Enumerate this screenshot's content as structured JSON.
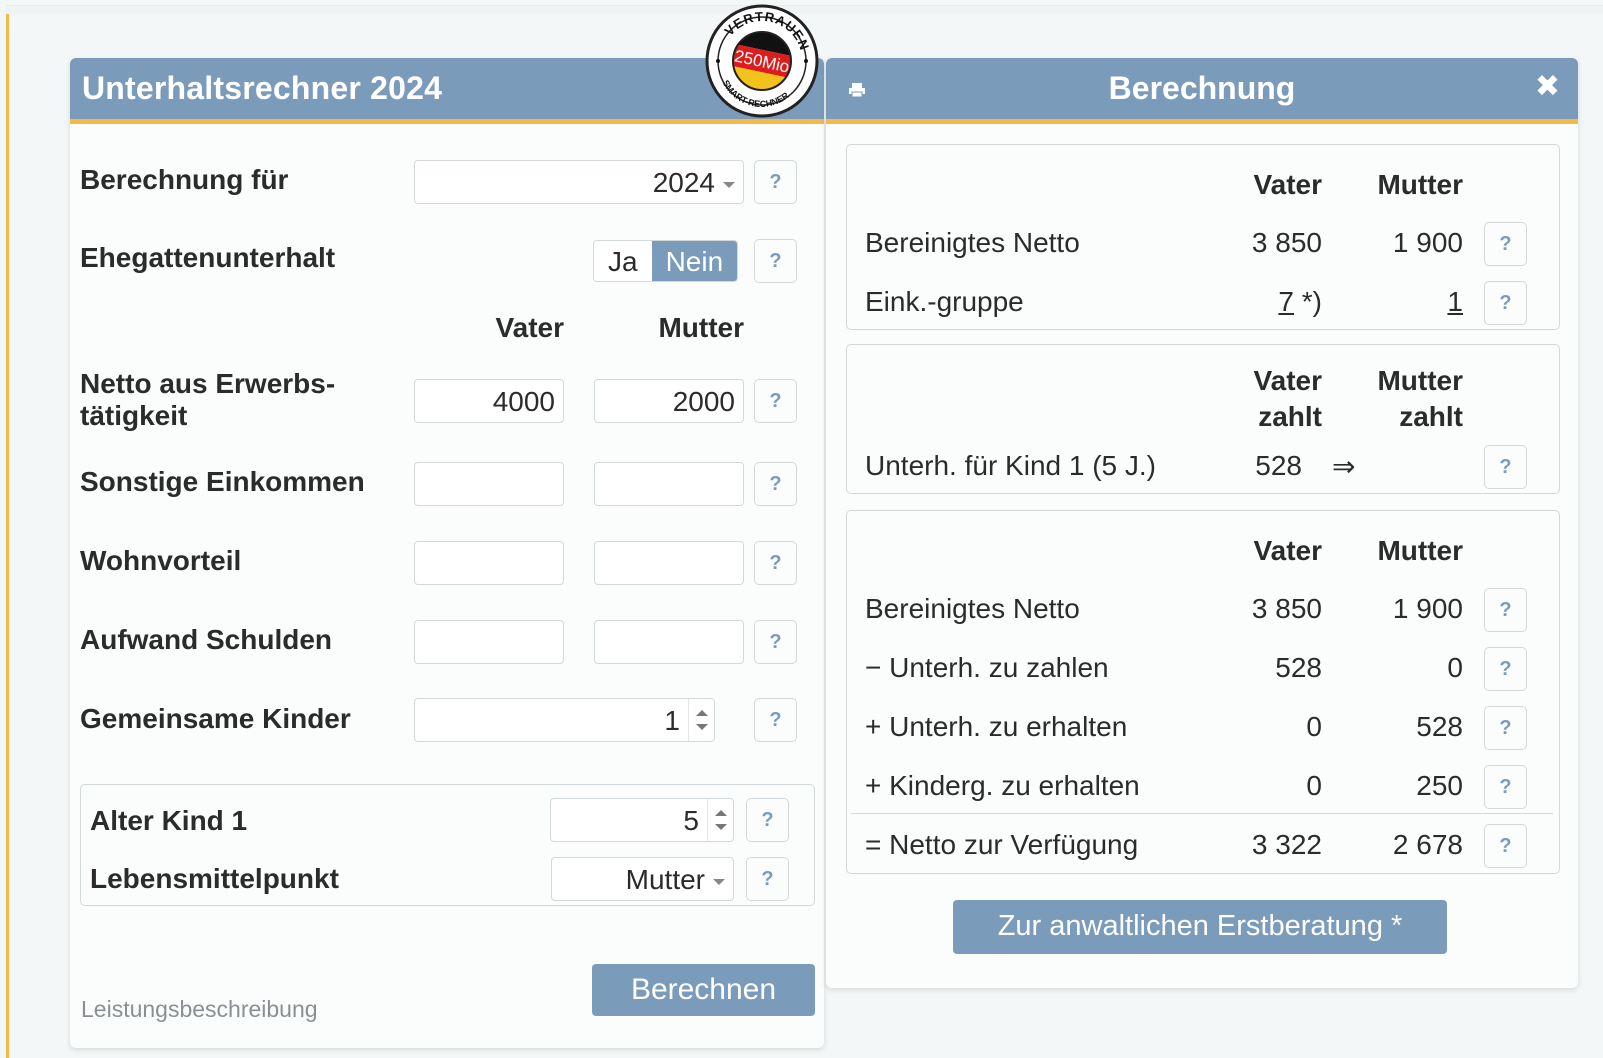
{
  "left": {
    "title": "Unterhaltsrechner 2024",
    "berechnung_fuer": {
      "label": "Berechnung für",
      "value": "2024"
    },
    "ehegattenunterhalt": {
      "label": "Ehegattenunterhalt",
      "option_yes": "Ja",
      "option_no": "Nein",
      "selected": "Nein"
    },
    "col_vater": "Vater",
    "col_mutter": "Mutter",
    "netto": {
      "label_line1": "Netto aus Erwerbs-",
      "label_line2": "tätigkeit",
      "vater": "4000",
      "mutter": "2000"
    },
    "sonstige": {
      "label": "Sonstige Einkommen",
      "vater": "",
      "mutter": ""
    },
    "wohnvorteil": {
      "label": "Wohnvorteil",
      "vater": "",
      "mutter": ""
    },
    "schulden": {
      "label": "Aufwand Schulden",
      "vater": "",
      "mutter": ""
    },
    "kinder": {
      "label": "Gemeinsame Kinder",
      "value": "1"
    },
    "kind1": {
      "alter_label": "Alter Kind 1",
      "alter_value": "5",
      "lmp_label": "Lebensmittelpunkt",
      "lmp_value": "Mutter"
    },
    "berechnen_label": "Berechnen",
    "leistung_label": "Leistungsbeschreibung",
    "help_glyph": "?"
  },
  "seal": {
    "arc_top": "VERTRAUEN",
    "center": "250Mio",
    "arc_bottom": "SMART-RECHNER"
  },
  "right": {
    "title": "Berechnung",
    "close_glyph": "✖",
    "card1": {
      "head_vater": "Vater",
      "head_mutter": "Mutter",
      "rows": [
        {
          "label": "Bereinigtes Netto",
          "vater": "3 850",
          "mutter": "1 900"
        },
        {
          "label": "Eink.-gruppe",
          "vater": "7",
          "vater_suffix": " *)",
          "mutter": "1"
        }
      ]
    },
    "card2": {
      "head_vater_1": "Vater",
      "head_vater_2": "zahlt",
      "head_mutter_1": "Mutter",
      "head_mutter_2": "zahlt",
      "row": {
        "label": "Unterh. für Kind 1 (5 J.)",
        "vater": "528",
        "arrow": "⇒",
        "mutter": ""
      }
    },
    "card3": {
      "head_vater": "Vater",
      "head_mutter": "Mutter",
      "rows": [
        {
          "label": "Bereinigtes Netto",
          "vater": "3 850",
          "mutter": "1 900"
        },
        {
          "label": "− Unterh. zu zahlen",
          "vater": "528",
          "mutter": "0"
        },
        {
          "label": "+ Unterh. zu erhalten",
          "vater": "0",
          "mutter": "528"
        },
        {
          "label": "+ Kinderg. zu erhalten",
          "vater": "0",
          "mutter": "250"
        },
        {
          "label": "= Netto zur Verfügung",
          "vater": "3 322",
          "mutter": "2 678"
        }
      ]
    },
    "erstberatung_label": "Zur anwaltlichen Erstberatung *"
  },
  "colors": {
    "header": "#7b9bbb",
    "accent": "#f5b94a",
    "border": "#d3d8db"
  }
}
